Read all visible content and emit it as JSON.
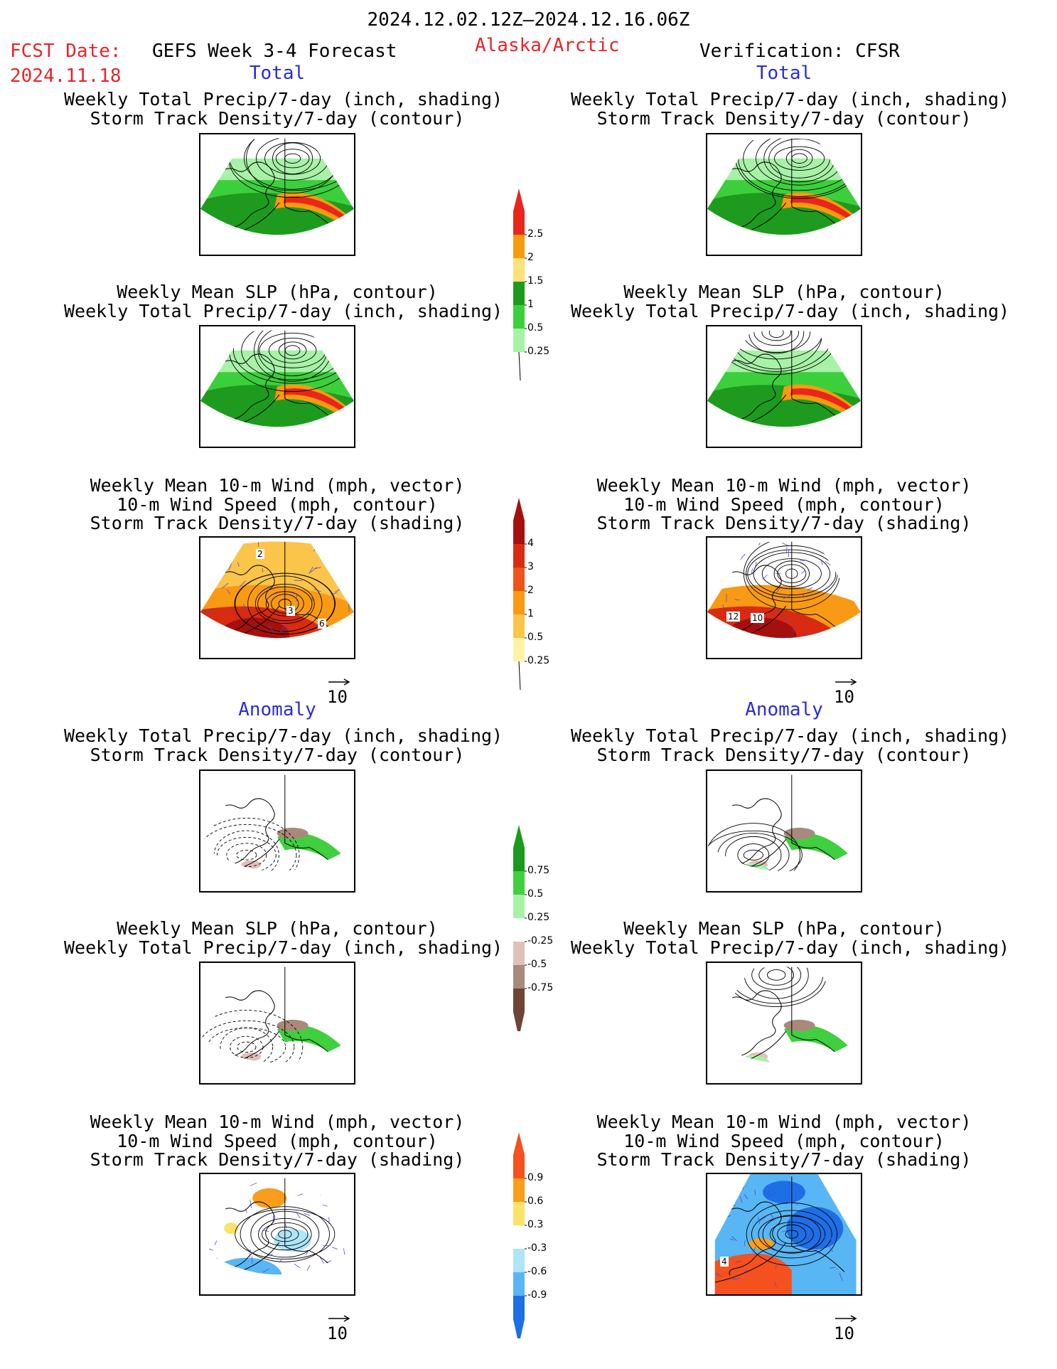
{
  "header": {
    "date_range": "2024.12.02.12Z–2024.12.16.06Z",
    "fcst_label": "FCST Date:",
    "fcst_date": "2024.11.18",
    "product": "GEFS Week 3-4 Forecast",
    "region": "Alaska/Arctic",
    "verification": "Verification: CFSR"
  },
  "sections": {
    "total_left": "Total",
    "total_right": "Total",
    "anomaly_left": "Anomaly",
    "anomaly_right": "Anomaly"
  },
  "panels": {
    "precip_storm": [
      "Weekly Total Precip/7-day (inch, shading)",
      "Storm Track Density/7-day (contour)"
    ],
    "slp_precip": [
      "Weekly Mean SLP (hPa, contour)",
      "Weekly Total Precip/7-day (inch, shading)"
    ],
    "wind_storm": [
      "Weekly Mean 10-m Wind (mph, vector)",
      "10-m Wind Speed (mph, contour)",
      "Storm Track Density/7-day (shading)"
    ]
  },
  "vector_ref": "10",
  "contour_labels": {
    "total_wind_left": [
      "2",
      "3",
      "6"
    ],
    "total_wind_right": [
      "12",
      "10"
    ],
    "anom_wind_right": [
      "4"
    ]
  },
  "colorbars": {
    "precip_total": {
      "labels": [
        "2.5",
        "2",
        "1.5",
        "1",
        "0.5",
        "0.25"
      ],
      "colors": [
        "#e8261c",
        "#f79b0e",
        "#fde17a",
        "#1e9b1e",
        "#3ccf3c",
        "#a7f2a7"
      ]
    },
    "storm_total": {
      "labels": [
        "4",
        "3",
        "2",
        "1",
        "0.5",
        "0.25"
      ],
      "colors": [
        "#a5100f",
        "#d82b12",
        "#f0531a",
        "#f99a15",
        "#fbc54a",
        "#fef2a6"
      ]
    },
    "precip_anom": {
      "labels": [
        "0.75",
        "0.5",
        "0.25",
        "-0.25",
        "-0.5",
        "-0.75"
      ],
      "colors": [
        "#1b9a1b",
        "#3fcf3f",
        "#a7f2a7",
        "#dfc2b7",
        "#a8897b",
        "#6e4437"
      ]
    },
    "storm_anom": {
      "labels": [
        "0.9",
        "0.6",
        "0.3",
        "-0.3",
        "-0.6",
        "-0.9"
      ],
      "colors": [
        "#f4511e",
        "#f99d1b",
        "#fde26a",
        "#aee5f9",
        "#58b6f4",
        "#1e6ee6"
      ]
    }
  }
}
